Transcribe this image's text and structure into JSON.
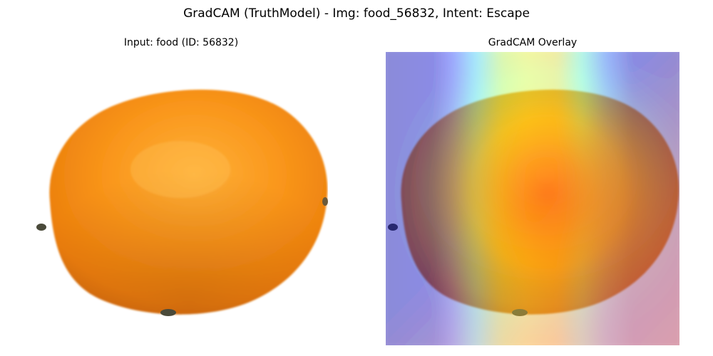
{
  "figure": {
    "title": "GradCAM (TruthModel) - Img: food_56832, Intent: Escape"
  },
  "panels": [
    {
      "title": "Input: food (ID: 56832)",
      "content": "orange-photo"
    },
    {
      "title": "GradCAM Overlay",
      "content": "orange-photo-with-heatmap",
      "colormap": "jet"
    }
  ],
  "colors": {
    "orange_light": "#ffab2e",
    "orange_mid": "#f78f12",
    "orange_dark": "#c7600a",
    "heat_low": "#0000a0",
    "heat_high": "#ff2000",
    "background": "#ffffff"
  }
}
